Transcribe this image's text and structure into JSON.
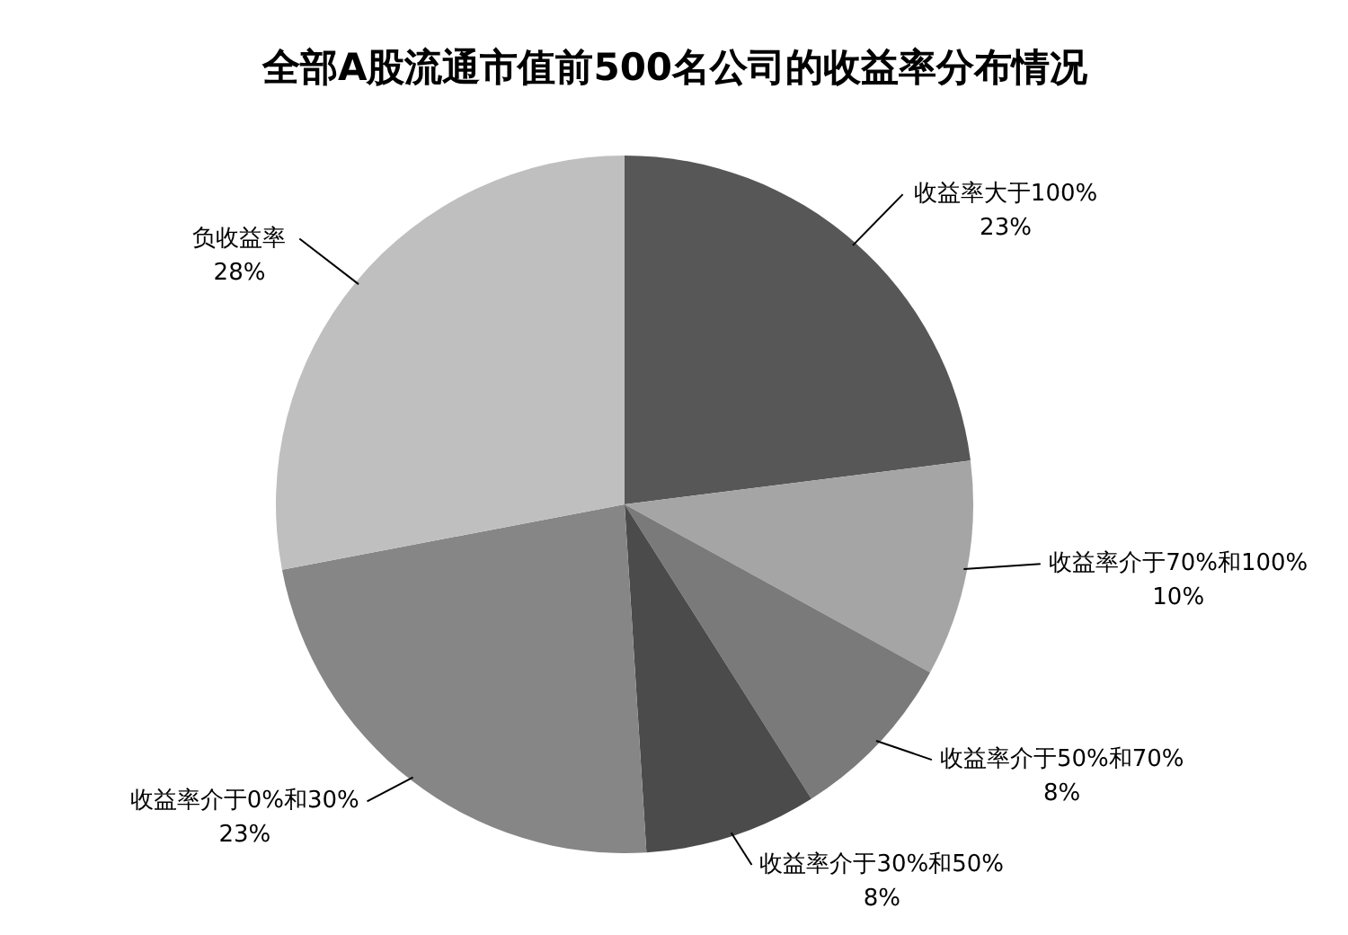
{
  "chart_data": {
    "type": "pie",
    "title": "全部A股流通市值前500名公司的收益率分布情况",
    "categories": [
      "收益率大于100%",
      "收益率介于70%和100%",
      "收益率介于50%和70%",
      "收益率介于30%和50%",
      "收益率介于0%和30%",
      "负收益率"
    ],
    "values": [
      23,
      10,
      8,
      8,
      23,
      28
    ],
    "value_labels": [
      "23%",
      "10%",
      "8%",
      "8%",
      "23%",
      "28%"
    ],
    "colors": [
      "#575757",
      "#a5a5a5",
      "#7a7a7a",
      "#4b4b4b",
      "#868686",
      "#bfbfbf"
    ]
  }
}
